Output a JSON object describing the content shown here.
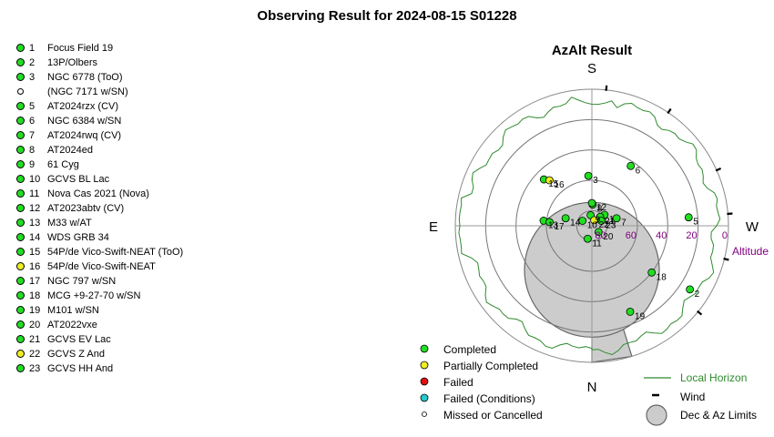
{
  "title": "Observing Result for 2024-08-15 S01228",
  "colors": {
    "completed": "#22dd22",
    "partial": "#eeee22",
    "failed": "#dd1111",
    "failed_conditions": "#22cccc",
    "missed": "#ffffff",
    "horizon": "#2e8b2e",
    "altitude_labels": "#800080",
    "limits_fill": "#cccccc"
  },
  "targets": [
    {
      "id": "1",
      "name": "Focus Field 19",
      "status": "completed"
    },
    {
      "id": "2",
      "name": "13P/Olbers",
      "status": "completed"
    },
    {
      "id": "3",
      "name": "NGC 6778 (ToO)",
      "status": "completed"
    },
    {
      "id": "",
      "name": "(NGC 7171 w/SN)",
      "status": "missed"
    },
    {
      "id": "5",
      "name": "AT2024rzx (CV)",
      "status": "completed"
    },
    {
      "id": "6",
      "name": "NGC 6384 w/SN",
      "status": "completed"
    },
    {
      "id": "7",
      "name": "AT2024rwq (CV)",
      "status": "completed"
    },
    {
      "id": "8",
      "name": "AT2024ed",
      "status": "completed"
    },
    {
      "id": "9",
      "name": "61 Cyg",
      "status": "completed"
    },
    {
      "id": "10",
      "name": "GCVS BL Lac",
      "status": "completed"
    },
    {
      "id": "11",
      "name": "Nova Cas 2021 (Nova)",
      "status": "completed"
    },
    {
      "id": "12",
      "name": "AT2023abtv (CV)",
      "status": "completed"
    },
    {
      "id": "13",
      "name": "M33 w/AT",
      "status": "completed"
    },
    {
      "id": "14",
      "name": "WDS GRB 34",
      "status": "completed"
    },
    {
      "id": "15",
      "name": "54P/de Vico-Swift-NEAT (ToO)",
      "status": "completed"
    },
    {
      "id": "16",
      "name": "54P/de Vico-Swift-NEAT",
      "status": "partial"
    },
    {
      "id": "17",
      "name": "NGC 797 w/SN",
      "status": "completed"
    },
    {
      "id": "18",
      "name": "MCG +9-27-70 w/SN",
      "status": "completed"
    },
    {
      "id": "19",
      "name": "M101 w/SN",
      "status": "completed"
    },
    {
      "id": "20",
      "name": "AT2022vxe",
      "status": "completed"
    },
    {
      "id": "21",
      "name": "GCVS EV Lac",
      "status": "completed"
    },
    {
      "id": "22",
      "name": "GCVS Z And",
      "status": "partial"
    },
    {
      "id": "23",
      "name": "GCVS HH And",
      "status": "completed"
    }
  ],
  "chart_data": {
    "type": "scatter",
    "projection": "polar altitude-azimuth",
    "title": "AzAlt Result",
    "directions": {
      "top": "S",
      "bottom": "N",
      "left": "E",
      "right": "W"
    },
    "radial_axis": {
      "label": "Altitude",
      "ticks": [
        80,
        60,
        40,
        20,
        0
      ],
      "range": [
        90,
        0
      ],
      "azimuth_convention": "0 = North (bottom), 90 = East (left), 180 = South (top), 270 = West (right)"
    },
    "points": [
      {
        "id": "1",
        "status": "completed",
        "label": "1",
        "alt": 79,
        "az": 229
      },
      {
        "id": "2",
        "status": "completed",
        "label": "2",
        "alt": 13,
        "az": 303
      },
      {
        "id": "3",
        "status": "completed",
        "label": "3",
        "alt": 57,
        "az": 176
      },
      {
        "id": "5",
        "status": "completed",
        "label": "5",
        "alt": 26,
        "az": 265
      },
      {
        "id": "6",
        "status": "completed",
        "label": "6",
        "alt": 43,
        "az": 213
      },
      {
        "id": "7",
        "status": "completed",
        "label": "7",
        "alt": 73,
        "az": 253
      },
      {
        "id": "8",
        "status": "completed",
        "label": "8",
        "alt": 76,
        "az": 182
      },
      {
        "id": "9",
        "status": "completed",
        "label": "9",
        "alt": 83,
        "az": 173
      },
      {
        "id": "10",
        "status": "completed",
        "label": "10",
        "alt": 83,
        "az": 118
      },
      {
        "id": "11",
        "status": "completed",
        "label": "11",
        "alt": 81,
        "az": 18
      },
      {
        "id": "12",
        "status": "completed",
        "label": "12",
        "alt": 75,
        "az": 180
      },
      {
        "id": "13",
        "status": "completed",
        "label": "13",
        "alt": 58,
        "az": 96
      },
      {
        "id": "14",
        "status": "completed",
        "label": "14",
        "alt": 72,
        "az": 106
      },
      {
        "id": "15",
        "status": "completed",
        "label": "15",
        "alt": 46,
        "az": 134
      },
      {
        "id": "16",
        "status": "partial",
        "label": "16",
        "alt": 49,
        "az": 137
      },
      {
        "id": "17",
        "status": "completed",
        "label": "17",
        "alt": 62,
        "az": 95
      },
      {
        "id": "18",
        "status": "completed",
        "label": "18",
        "alt": 40,
        "az": 308
      },
      {
        "id": "19",
        "status": "completed",
        "label": "19",
        "alt": 28,
        "az": 336
      },
      {
        "id": "20",
        "status": "completed",
        "label": "20",
        "alt": 84,
        "az": 313
      },
      {
        "id": "21",
        "status": "completed",
        "label": "21",
        "alt": 82,
        "az": 223
      },
      {
        "id": "22",
        "status": "partial",
        "label": "22",
        "alt": 86,
        "az": 203
      },
      {
        "id": "23",
        "status": "completed",
        "label": "23",
        "alt": 83,
        "az": 242
      }
    ],
    "wind_ticks_az": [
      186,
      214,
      246,
      265,
      284,
      309
    ],
    "limits": {
      "dec_circle": {
        "alt": 61,
        "az": 0,
        "radius_alt": 12
      },
      "az_wedge": {
        "az_from": 0,
        "az_to": 343,
        "alt_from": 52,
        "alt_to": 0
      }
    },
    "local_horizon_note": "approximately 5-12 degrees altitude around the full circle",
    "legend": [
      {
        "status": "completed",
        "label": "Completed"
      },
      {
        "status": "partial",
        "label": "Partially Completed"
      },
      {
        "status": "failed",
        "label": "Failed"
      },
      {
        "status": "failed_conditions",
        "label": "Failed (Conditions)"
      },
      {
        "status": "missed",
        "label": "Missed or Cancelled"
      }
    ],
    "legend_right": [
      {
        "key": "horizon",
        "label": "Local Horizon"
      },
      {
        "key": "wind",
        "label": "Wind"
      },
      {
        "key": "limits",
        "label": "Dec & Az Limits"
      }
    ]
  }
}
